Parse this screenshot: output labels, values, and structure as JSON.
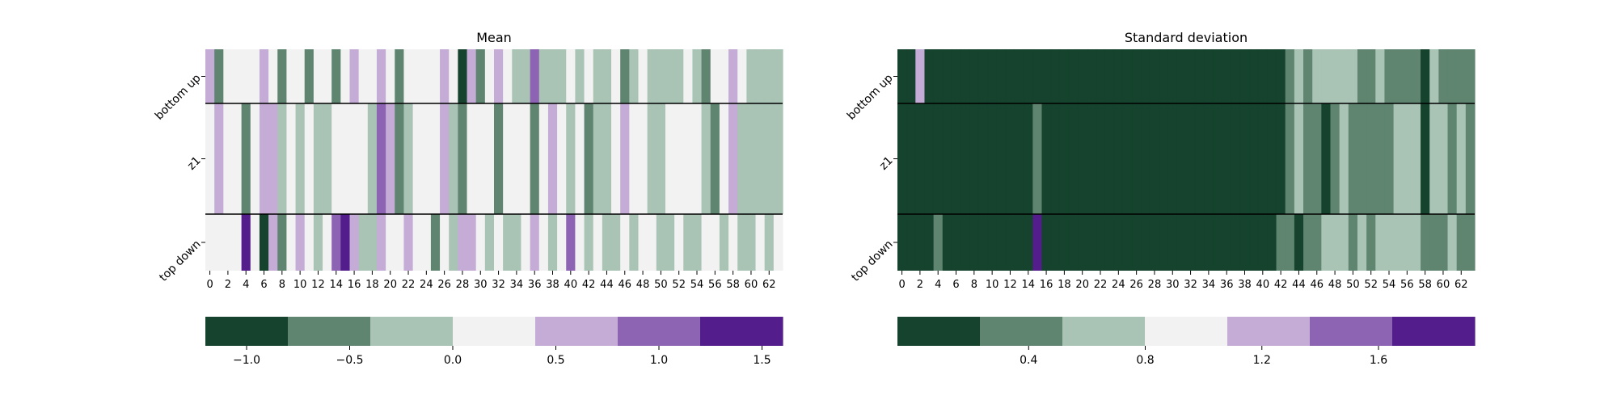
{
  "palette": [
    "#15432d",
    "#5f8570",
    "#a9c3b5",
    "#f2f2f2",
    "#c4acd7",
    "#8d63b3",
    "#541d8c"
  ],
  "chart_data": [
    {
      "type": "heatmap",
      "title": "Mean",
      "rows": [
        "bottom up",
        "z1",
        "top down"
      ],
      "columns": [
        0,
        1,
        2,
        3,
        4,
        5,
        6,
        7,
        8,
        9,
        10,
        11,
        12,
        13,
        14,
        15,
        16,
        17,
        18,
        19,
        20,
        21,
        22,
        23,
        24,
        25,
        26,
        27,
        28,
        29,
        30,
        31,
        32,
        33,
        34,
        35,
        36,
        37,
        38,
        39,
        40,
        41,
        42,
        43,
        44,
        45,
        46,
        47,
        48,
        49,
        50,
        51,
        52,
        53,
        54,
        55,
        56,
        57,
        58,
        59,
        60,
        61,
        62,
        63
      ],
      "x_tick_labels": [
        "0",
        "2",
        "4",
        "6",
        "8",
        "10",
        "12",
        "14",
        "16",
        "18",
        "20",
        "22",
        "24",
        "26",
        "28",
        "30",
        "32",
        "34",
        "36",
        "38",
        "40",
        "42",
        "44",
        "46",
        "48",
        "50",
        "52",
        "54",
        "56",
        "58",
        "60",
        "62"
      ],
      "values": [
        [
          0.5,
          -0.5,
          0.0,
          0.0,
          0.0,
          0.0,
          0.5,
          0.0,
          -0.5,
          0.0,
          0.0,
          -0.5,
          0.0,
          0.0,
          -0.5,
          0.0,
          0.5,
          0.0,
          0.0,
          0.5,
          0.0,
          -0.5,
          0.0,
          0.0,
          0.0,
          0.0,
          0.5,
          0.0,
          -1.0,
          0.5,
          -0.5,
          0.0,
          0.5,
          0.0,
          -0.3,
          -0.3,
          1.0,
          -0.3,
          -0.3,
          -0.3,
          0.0,
          -0.3,
          0.0,
          -0.3,
          -0.3,
          0.0,
          -0.5,
          -0.3,
          0.0,
          -0.3,
          -0.3,
          -0.3,
          -0.3,
          0.0,
          -0.3,
          -0.5,
          0.0,
          0.0,
          0.5,
          0.0,
          -0.3,
          -0.3,
          -0.3,
          -0.3
        ],
        [
          0.0,
          0.5,
          0.0,
          0.0,
          -0.5,
          0.0,
          0.5,
          0.5,
          -0.3,
          0.0,
          -0.3,
          0.0,
          -0.3,
          -0.3,
          0.0,
          0.0,
          0.0,
          0.0,
          -0.3,
          1.0,
          0.5,
          -0.5,
          -0.3,
          0.0,
          0.0,
          0.0,
          0.5,
          -0.3,
          -0.5,
          0.0,
          0.0,
          0.0,
          -0.5,
          0.0,
          0.0,
          0.0,
          -0.5,
          0.0,
          0.5,
          0.0,
          -0.3,
          0.0,
          -0.5,
          -0.3,
          -0.3,
          0.0,
          0.5,
          0.0,
          0.0,
          -0.3,
          -0.3,
          0.0,
          0.0,
          0.0,
          0.0,
          -0.3,
          -0.5,
          0.0,
          0.5,
          -0.3,
          -0.3,
          -0.3,
          -0.3,
          -0.3
        ],
        [
          0.0,
          0.0,
          0.0,
          0.0,
          1.5,
          0.0,
          -1.0,
          0.5,
          -0.5,
          0.0,
          0.5,
          0.0,
          -0.3,
          0.0,
          1.0,
          1.5,
          0.5,
          -0.3,
          -0.3,
          0.5,
          0.0,
          0.0,
          0.5,
          0.0,
          0.0,
          -0.5,
          0.0,
          -0.3,
          0.5,
          0.5,
          0.0,
          -0.3,
          0.0,
          -0.3,
          -0.3,
          0.0,
          0.5,
          0.0,
          -0.3,
          0.0,
          1.0,
          0.0,
          -0.3,
          0.0,
          -0.3,
          -0.3,
          0.0,
          -0.3,
          0.0,
          0.0,
          -0.3,
          -0.3,
          0.0,
          -0.3,
          -0.3,
          0.0,
          0.0,
          -0.3,
          0.0,
          -0.3,
          -0.3,
          0.0,
          -0.3,
          0.0
        ]
      ],
      "colorbar": {
        "ticks": [
          -1.0,
          -0.5,
          0.0,
          0.5,
          1.0,
          1.5
        ],
        "tick_labels": [
          "−1.0",
          "−0.5",
          "0.0",
          "0.5",
          "1.0",
          "1.5"
        ],
        "range": [
          -1.2,
          1.6
        ]
      }
    },
    {
      "type": "heatmap",
      "title": "Standard deviation",
      "rows": [
        "bottom up",
        "z1",
        "top down"
      ],
      "columns": [
        0,
        1,
        2,
        3,
        4,
        5,
        6,
        7,
        8,
        9,
        10,
        11,
        12,
        13,
        14,
        15,
        16,
        17,
        18,
        19,
        20,
        21,
        22,
        23,
        24,
        25,
        26,
        27,
        28,
        29,
        30,
        31,
        32,
        33,
        34,
        35,
        36,
        37,
        38,
        39,
        40,
        41,
        42,
        43,
        44,
        45,
        46,
        47,
        48,
        49,
        50,
        51,
        52,
        53,
        54,
        55,
        56,
        57,
        58,
        59,
        60,
        61,
        62,
        63
      ],
      "x_tick_labels": [
        "0",
        "2",
        "4",
        "6",
        "8",
        "10",
        "12",
        "14",
        "16",
        "18",
        "20",
        "22",
        "24",
        "26",
        "28",
        "30",
        "32",
        "34",
        "36",
        "38",
        "40",
        "42",
        "44",
        "46",
        "48",
        "50",
        "52",
        "54",
        "56",
        "58",
        "60",
        "62"
      ],
      "values": [
        [
          0.05,
          0.05,
          1.25,
          0.05,
          0.05,
          0.05,
          0.05,
          0.05,
          0.05,
          0.05,
          0.05,
          0.05,
          0.05,
          0.05,
          0.05,
          0.05,
          0.05,
          0.05,
          0.05,
          0.05,
          0.05,
          0.05,
          0.05,
          0.05,
          0.05,
          0.05,
          0.05,
          0.05,
          0.05,
          0.05,
          0.05,
          0.05,
          0.05,
          0.05,
          0.05,
          0.05,
          0.05,
          0.05,
          0.05,
          0.05,
          0.05,
          0.05,
          0.05,
          0.45,
          0.75,
          0.45,
          0.75,
          0.75,
          0.75,
          0.75,
          0.75,
          0.45,
          0.45,
          0.75,
          0.45,
          0.45,
          0.45,
          0.45,
          0.05,
          0.75,
          0.45,
          0.45,
          0.45,
          0.45
        ],
        [
          0.05,
          0.05,
          0.05,
          0.05,
          0.05,
          0.05,
          0.05,
          0.05,
          0.05,
          0.05,
          0.05,
          0.05,
          0.05,
          0.05,
          0.05,
          0.45,
          0.05,
          0.05,
          0.05,
          0.05,
          0.05,
          0.05,
          0.05,
          0.05,
          0.05,
          0.05,
          0.05,
          0.05,
          0.05,
          0.05,
          0.05,
          0.05,
          0.05,
          0.05,
          0.05,
          0.05,
          0.05,
          0.05,
          0.05,
          0.05,
          0.05,
          0.05,
          0.05,
          0.45,
          0.75,
          0.45,
          0.45,
          0.05,
          0.45,
          0.75,
          0.45,
          0.45,
          0.45,
          0.45,
          0.45,
          0.75,
          0.75,
          0.75,
          0.05,
          0.75,
          0.75,
          0.45,
          0.75,
          0.45
        ],
        [
          0.05,
          0.05,
          0.05,
          0.05,
          0.45,
          0.05,
          0.05,
          0.05,
          0.05,
          0.05,
          0.05,
          0.05,
          0.05,
          0.05,
          0.05,
          1.85,
          0.05,
          0.05,
          0.05,
          0.05,
          0.05,
          0.05,
          0.05,
          0.05,
          0.05,
          0.05,
          0.05,
          0.05,
          0.05,
          0.05,
          0.05,
          0.05,
          0.05,
          0.05,
          0.05,
          0.05,
          0.05,
          0.05,
          0.05,
          0.05,
          0.05,
          0.05,
          0.45,
          0.45,
          0.05,
          0.45,
          0.45,
          0.75,
          0.75,
          0.75,
          0.45,
          0.75,
          0.45,
          0.75,
          0.75,
          0.75,
          0.75,
          0.75,
          0.45,
          0.45,
          0.45,
          0.75,
          0.45,
          0.45
        ]
      ],
      "colorbar": {
        "ticks": [
          0.4,
          0.8,
          1.2,
          1.6
        ],
        "tick_labels": [
          "0.4",
          "0.8",
          "1.2",
          "1.6"
        ],
        "range": [
          -0.05,
          1.93
        ]
      }
    }
  ]
}
